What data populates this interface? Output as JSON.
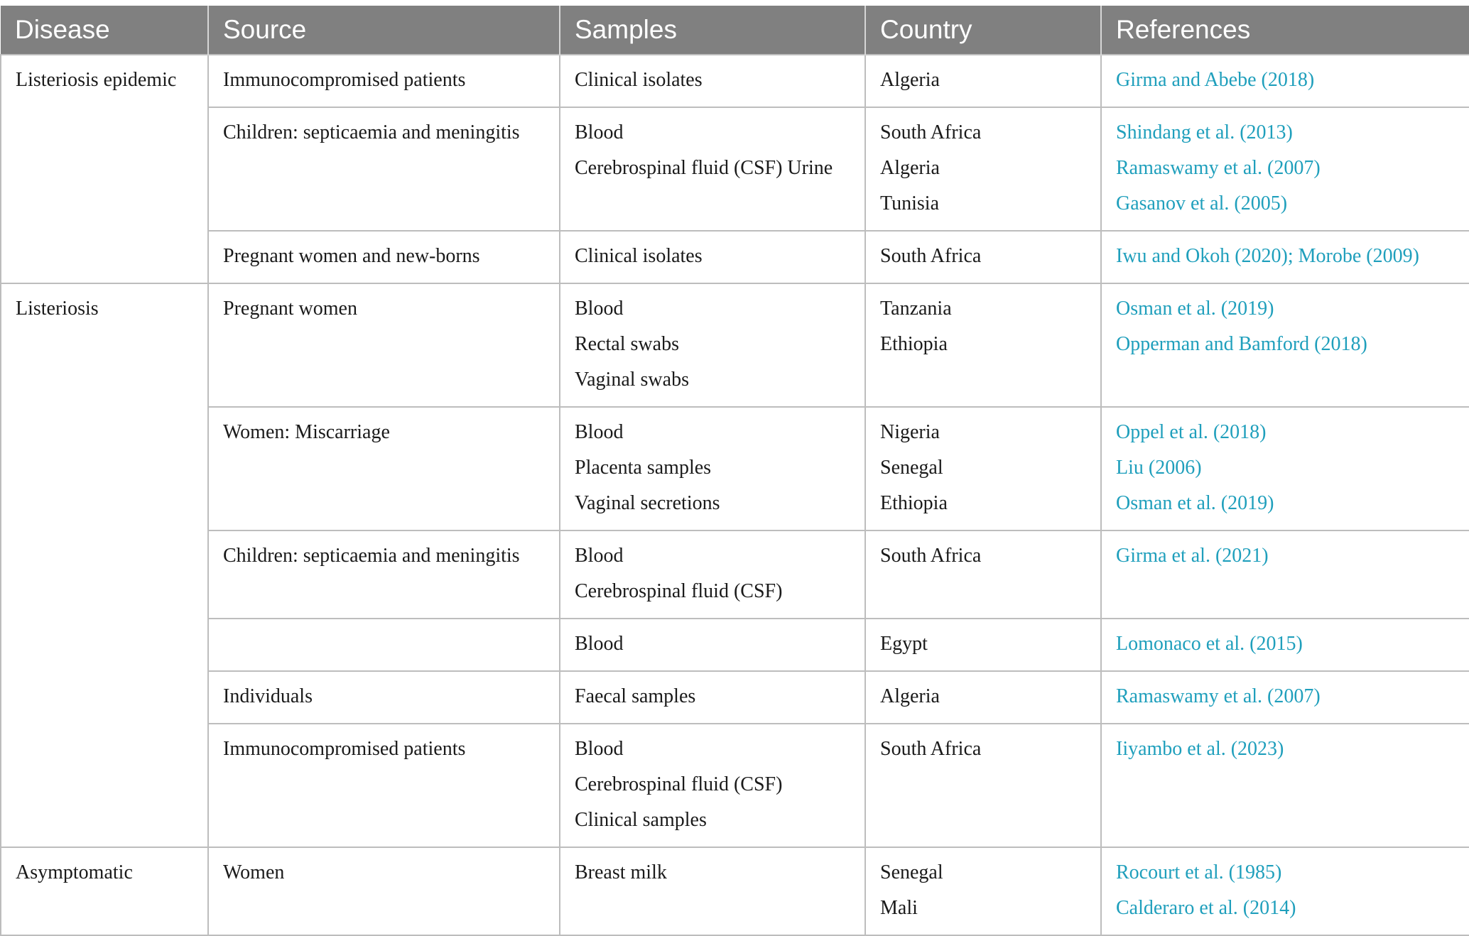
{
  "headers": [
    "Disease",
    "Source",
    "Samples",
    "Country",
    "References"
  ],
  "groups": [
    {
      "disease": "Listeriosis epidemic",
      "rows": [
        {
          "source": [
            "Immunocompromised patients"
          ],
          "samples": [
            "Clinical isolates"
          ],
          "country": [
            "Algeria"
          ],
          "references": [
            "Girma and Abebe (2018)"
          ]
        },
        {
          "source": [
            "Children: septicaemia and meningitis"
          ],
          "samples": [
            "Blood",
            "Cerebrospinal fluid (CSF) Urine"
          ],
          "country": [
            "South Africa",
            "Algeria",
            "Tunisia"
          ],
          "references": [
            "Shindang et al. (2013)",
            "Ramaswamy et al. (2007)",
            "Gasanov et al. (2005)"
          ]
        },
        {
          "source": [
            "Pregnant women and new-borns"
          ],
          "samples": [
            "Clinical isolates"
          ],
          "country": [
            "South Africa"
          ],
          "references": [
            "Iwu and Okoh (2020); Morobe (2009)"
          ]
        }
      ]
    },
    {
      "disease": "Listeriosis",
      "rows": [
        {
          "source": [
            "Pregnant women"
          ],
          "samples": [
            "Blood",
            "Rectal swabs",
            "Vaginal swabs"
          ],
          "country": [
            "Tanzania",
            "Ethiopia"
          ],
          "references": [
            "Osman et al. (2019)",
            "Opperman and Bamford (2018)"
          ]
        },
        {
          "source": [
            "Women: Miscarriage"
          ],
          "samples": [
            "Blood",
            "Placenta samples",
            "Vaginal secretions"
          ],
          "country": [
            "Nigeria",
            "Senegal",
            "Ethiopia"
          ],
          "references": [
            "Oppel et al. (2018)",
            "Liu (2006)",
            "Osman et al. (2019)"
          ]
        },
        {
          "source": [
            "Children: septicaemia and meningitis"
          ],
          "samples": [
            "Blood",
            "Cerebrospinal fluid (CSF)"
          ],
          "country": [
            "South Africa"
          ],
          "references": [
            "Girma et al. (2021)"
          ]
        },
        {
          "source": [],
          "samples": [
            "Blood"
          ],
          "country": [
            "Egypt"
          ],
          "references": [
            "Lomonaco et al. (2015)"
          ]
        },
        {
          "source": [
            "Individuals"
          ],
          "samples": [
            "Faecal samples"
          ],
          "country": [
            "Algeria"
          ],
          "references": [
            "Ramaswamy et al. (2007)"
          ]
        },
        {
          "source": [
            "Immunocompromised patients"
          ],
          "samples": [
            "Blood",
            "Cerebrospinal fluid (CSF)",
            "Clinical samples"
          ],
          "country": [
            "South Africa"
          ],
          "references": [
            "Iiyambo et al. (2023)"
          ]
        }
      ]
    },
    {
      "disease": "Asymptomatic",
      "rows": [
        {
          "source": [
            "Women"
          ],
          "samples": [
            "Breast milk"
          ],
          "country": [
            "Senegal",
            "Mali"
          ],
          "references": [
            "Rocourt et al. (1985)",
            "Calderaro et al. (2014)"
          ]
        }
      ]
    }
  ],
  "colors": {
    "header_bg": "#808080",
    "header_text": "#ffffff",
    "link": "#1f9fbc",
    "grid": "#bdbdbd"
  }
}
